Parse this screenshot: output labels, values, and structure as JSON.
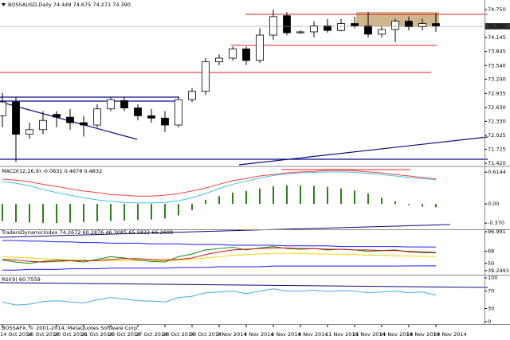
{
  "chart_data": [
    {
      "type": "candlestick",
      "title": "BOSSAUSD,Daily 74.449 74.675 74.271 74.390",
      "categories": [
        "14 Oct 2014",
        null,
        "16 Oct 2014",
        null,
        "20 Oct 2014",
        null,
        "21 Oct 2014",
        null,
        "23 Oct 2014",
        null,
        "27 Oct 2014",
        null,
        "28 Oct 2014",
        null,
        "30 Oct 2014",
        null,
        "3 Nov 2014",
        null,
        "4 Nov 2014",
        null,
        "6 Nov 2014",
        null,
        "9 Nov 2014",
        null,
        "11 Nov 2014",
        null,
        "13 Nov 2014",
        null,
        "14 Nov 2014",
        null,
        "18 Nov 2014",
        null,
        "20 Nov 2014"
      ],
      "open": [
        72.45,
        72.75,
        72.05,
        72.15,
        72.48,
        72.42,
        72.3,
        72.25,
        72.6,
        72.78,
        72.62,
        72.45,
        72.4,
        72.25,
        72.8,
        72.98,
        73.62,
        73.7,
        73.9,
        73.65,
        74.2,
        74.62,
        74.25,
        74.27,
        74.4,
        74.3,
        74.45,
        74.4,
        74.22,
        74.32,
        74.5,
        74.38,
        74.449
      ],
      "high": [
        72.95,
        72.85,
        72.3,
        72.55,
        72.55,
        72.6,
        72.45,
        72.7,
        72.85,
        72.85,
        72.7,
        72.6,
        72.55,
        72.85,
        73.05,
        73.7,
        73.78,
        73.95,
        73.95,
        74.35,
        74.75,
        74.7,
        74.3,
        74.5,
        74.55,
        74.55,
        74.6,
        74.7,
        74.4,
        74.55,
        74.6,
        74.55,
        74.675
      ],
      "low": [
        72.2,
        71.45,
        71.95,
        72.05,
        72.2,
        72.15,
        72.0,
        72.2,
        72.55,
        72.55,
        72.35,
        72.3,
        72.1,
        72.2,
        72.75,
        72.9,
        73.55,
        73.65,
        73.55,
        73.6,
        74.1,
        74.2,
        74.22,
        74.15,
        74.25,
        74.28,
        74.35,
        74.15,
        74.15,
        74.05,
        74.3,
        74.3,
        74.271
      ],
      "close": [
        72.75,
        72.05,
        72.15,
        72.35,
        72.42,
        72.3,
        72.25,
        72.6,
        72.8,
        72.62,
        72.45,
        72.4,
        72.25,
        72.8,
        72.98,
        73.62,
        73.7,
        73.9,
        73.65,
        74.2,
        74.6,
        74.25,
        74.27,
        74.4,
        74.3,
        74.45,
        74.4,
        74.22,
        74.32,
        74.5,
        74.38,
        74.45,
        74.39
      ],
      "up_color": "#ffffff",
      "down_color": "#000000",
      "ylim": [
        71.37,
        74.96
      ],
      "yticks": [
        {
          "value": 74.75,
          "label": "74.750"
        },
        74.145,
        73.845,
        {
          "value": 73.54,
          "label": "73.540"
        },
        {
          "value": 73.24,
          "label": "73.240"
        },
        72.935,
        {
          "value": 72.63,
          "label": "72.630"
        },
        {
          "value": 72.33,
          "label": "72.330"
        },
        72.025,
        71.725,
        {
          "value": 71.42,
          "label": "71.420"
        }
      ],
      "last_price": {
        "value": 74.39,
        "label": "74.390"
      }
    },
    {
      "type": "indicator",
      "title": "MACD(12,26,9) -0.0631 0.4678 0.4832",
      "ylim": [
        -0.49,
        0.71
      ],
      "yticks": [
        0.6144,
        {
          "value": 0,
          "label": "0.00"
        },
        {
          "value": -0.37,
          "label": "-0.370"
        }
      ],
      "series": [
        {
          "kind": "bar",
          "color": "#2e7d1e",
          "values": [
            -0.33,
            -0.35,
            -0.36,
            -0.37,
            -0.37,
            -0.36,
            -0.35,
            -0.34,
            -0.33,
            -0.32,
            -0.31,
            -0.3,
            -0.28,
            -0.22,
            -0.12,
            0.08,
            0.15,
            0.22,
            0.25,
            0.3,
            0.34,
            0.36,
            0.36,
            0.35,
            0.33,
            0.3,
            0.26,
            0.2,
            0.12,
            0.05,
            -0.02,
            -0.05,
            -0.0631
          ]
        },
        {
          "kind": "line",
          "color": "#ff4040",
          "values": [
            0.48,
            0.46,
            0.43,
            0.38,
            0.34,
            0.29,
            0.25,
            0.22,
            0.18,
            0.17,
            0.15,
            0.15,
            0.17,
            0.2,
            0.25,
            0.31,
            0.38,
            0.45,
            0.49,
            0.54,
            0.57,
            0.6,
            0.62,
            0.63,
            0.65,
            0.65,
            0.64,
            0.62,
            0.6,
            0.57,
            0.54,
            0.51,
            0.4832
          ]
        },
        {
          "kind": "line",
          "color": "#40c0e8",
          "values": [
            0.43,
            0.4,
            0.35,
            0.28,
            0.22,
            0.17,
            0.12,
            0.08,
            0.05,
            0.03,
            0.02,
            0.02,
            0.03,
            0.06,
            0.12,
            0.2,
            0.3,
            0.38,
            0.44,
            0.5,
            0.55,
            0.58,
            0.6,
            0.61,
            0.62,
            0.62,
            0.61,
            0.59,
            0.57,
            0.54,
            0.51,
            0.49,
            0.4678
          ]
        }
      ]
    },
    {
      "type": "indicator",
      "title": "TradersDynamicIndex 74.2672 60.2876 46.3085 65.5822 66.2688",
      "ylim": [
        33.2,
        100.6
      ],
      "yticks": [
        96.991,
        68,
        50,
        39.2493
      ],
      "series": [
        {
          "kind": "line",
          "color": "#1c1cff",
          "values": [
            84,
            84,
            83,
            83,
            82,
            82,
            81,
            81,
            80,
            80,
            80,
            79,
            79,
            79,
            78,
            78,
            78,
            77,
            77,
            77,
            77,
            76,
            76,
            76,
            76,
            75,
            75,
            75,
            75,
            75,
            74.5,
            74.4,
            74.2672
          ]
        },
        {
          "kind": "line",
          "color": "#f0d800",
          "values": [
            60,
            59,
            58,
            57,
            56,
            55,
            55,
            54,
            54,
            54,
            54,
            54,
            54,
            55,
            56,
            58,
            60,
            62,
            63,
            64,
            65,
            65,
            65,
            64,
            64,
            63,
            63,
            62,
            62,
            61,
            61,
            60.5,
            60.2876
          ]
        },
        {
          "kind": "line",
          "color": "#1c1cff",
          "values": [
            40,
            40,
            41,
            41,
            41,
            42,
            42,
            42,
            43,
            43,
            43,
            43,
            43,
            44,
            44,
            44,
            45,
            45,
            45,
            45,
            46,
            46,
            46,
            46,
            46,
            46,
            46,
            46,
            46,
            46,
            46.2,
            46.3,
            46.3085
          ]
        },
        {
          "kind": "line",
          "color": "#0a8a0a",
          "values": [
            55,
            52,
            50,
            53,
            55,
            54,
            52,
            56,
            60,
            58,
            55,
            53,
            52,
            60,
            64,
            70,
            72,
            74,
            70,
            73,
            75,
            72,
            71,
            72,
            70,
            71,
            70,
            68,
            69,
            70,
            67,
            66,
            65.5822
          ]
        },
        {
          "kind": "line",
          "color": "#d01010",
          "values": [
            56,
            55,
            53,
            52,
            53,
            54,
            54,
            54,
            56,
            57,
            57,
            56,
            55,
            56,
            58,
            63,
            67,
            70,
            71,
            72,
            73,
            73,
            72,
            72,
            71,
            71,
            70,
            70,
            69,
            69,
            68,
            67,
            66.2688
          ]
        }
      ]
    },
    {
      "type": "indicator",
      "title": "RSI(9) 60.7559",
      "ylim": [
        -7.3,
        107.3
      ],
      "yticks": [
        100,
        70,
        30,
        0
      ],
      "series": [
        {
          "kind": "line",
          "color": "#4aa8e0",
          "values": [
            45,
            38,
            40,
            46,
            48,
            45,
            43,
            50,
            55,
            52,
            48,
            47,
            45,
            55,
            58,
            66,
            68,
            70,
            64,
            70,
            75,
            70,
            70,
            72,
            69,
            71,
            70,
            66,
            68,
            70,
            66,
            68,
            60.7559
          ]
        }
      ]
    }
  ],
  "footer": "BOSSAFX, © 2001-2014, MetaQuotes Software Corp."
}
